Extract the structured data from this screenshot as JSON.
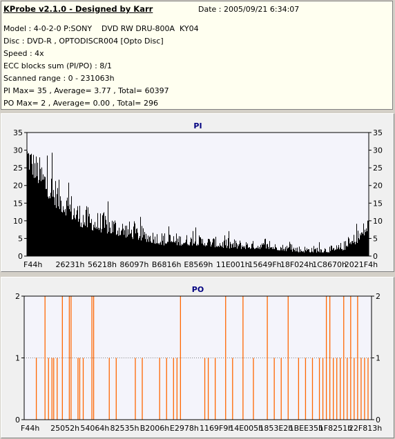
{
  "header": {
    "app_title": "KProbe v2.1.0 - Designed by Karr",
    "date": "Date : 2005/09/21 6:34:07"
  },
  "info_lines": [
    "Model : 4-0-2-0 P:SONY    DVD RW DRU-800A  KY04",
    "Disc : DVD-R , OPTODISCR004 [Opto Disc]",
    "Speed : 4x",
    "ECC blocks sum (PI/PO) : 8/1",
    "Scanned range : 0 - 231063h",
    "PI Max= 35 , Average= 3.77 , Total= 60397",
    "PO Max= 2 , Average= 0.00 , Total= 296"
  ],
  "colors": {
    "pi_bars": "#000000",
    "po_bars": "#ff6600",
    "plot_bg": "#f4f4fb",
    "pi_title": "#000080",
    "po_title": "#000080"
  },
  "chart_data": [
    {
      "type": "bar",
      "title": "PI",
      "ylim": [
        0,
        35
      ],
      "yticks": [
        0,
        5,
        10,
        15,
        20,
        25,
        30,
        35
      ],
      "xticks": [
        "F44h",
        "26231h",
        "56218h",
        "86097h",
        "B6816h",
        "E8569h",
        "11E001h",
        "15649Fh",
        "18F024h",
        "1C8670h",
        "2021F4h"
      ],
      "x_range": [
        "0h",
        "231063h"
      ],
      "grid": false,
      "envelope": {
        "positions": [
          0,
          0.02,
          0.05,
          0.08,
          0.12,
          0.16,
          0.2,
          0.25,
          0.3,
          0.35,
          0.4,
          0.5,
          0.6,
          0.7,
          0.8,
          0.85,
          0.9,
          0.94,
          0.97,
          1.0
        ],
        "max": [
          35,
          30,
          27,
          23,
          19,
          15,
          13,
          12,
          10,
          8,
          7,
          6,
          5,
          4,
          3,
          3,
          3,
          5,
          8,
          12
        ],
        "base": [
          25,
          22,
          18,
          14,
          11,
          8,
          7,
          6,
          5,
          4,
          3,
          3,
          2,
          2,
          1,
          1,
          1,
          2,
          4,
          7
        ]
      }
    },
    {
      "type": "bar",
      "title": "PO",
      "ylim": [
        0,
        2
      ],
      "yticks": [
        0,
        1,
        2
      ],
      "xticks": [
        "F44h",
        "25052h",
        "54064h",
        "82535h",
        "B2006h",
        "E2978h",
        "1169F9h",
        "14E005h",
        "1853E2h",
        "1BEE35h",
        "1F8251h",
        "22F813h"
      ],
      "x_range": [
        "0h",
        "231063h"
      ],
      "grid": false,
      "spikes_value_2": [
        0.06,
        0.11,
        0.13,
        0.135,
        0.195,
        0.2,
        0.45,
        0.58,
        0.63,
        0.7,
        0.76,
        0.87,
        0.88,
        0.92,
        0.94,
        0.96
      ],
      "spikes_value_1": [
        0.035,
        0.07,
        0.08,
        0.085,
        0.095,
        0.155,
        0.16,
        0.17,
        0.245,
        0.265,
        0.32,
        0.34,
        0.39,
        0.41,
        0.43,
        0.44,
        0.52,
        0.53,
        0.55,
        0.6,
        0.66,
        0.72,
        0.74,
        0.79,
        0.81,
        0.83,
        0.85,
        0.86,
        0.89,
        0.9,
        0.91,
        0.93,
        0.95,
        0.97,
        0.98,
        0.99
      ]
    }
  ]
}
